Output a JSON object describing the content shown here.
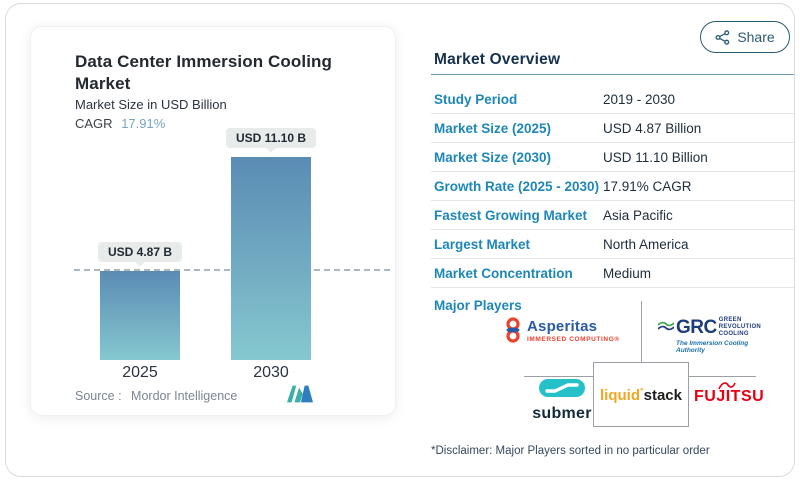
{
  "share": {
    "label": "Share"
  },
  "chart_panel": {
    "title": "Data Center Immersion Cooling Market",
    "subtitle": "Market Size in USD Billion",
    "cagr_label": "CAGR",
    "cagr_value": "17.91%",
    "source_label": "Source :",
    "source_value": "Mordor Intelligence"
  },
  "chart_data": {
    "type": "bar",
    "categories": [
      "2025",
      "2030"
    ],
    "values": [
      4.87,
      11.1
    ],
    "bar_labels": [
      "USD 4.87 B",
      "USD 11.10 B"
    ],
    "title": "Data Center Immersion Cooling Market",
    "ylabel": "Market Size in USD Billion",
    "reference_line": 4.87,
    "legend": "none",
    "grid": "off",
    "bar_color_top": "#5a8cb4",
    "bar_color_bottom": "#85c8cf"
  },
  "overview": {
    "title": "Market Overview",
    "rows": [
      {
        "label": "Study Period",
        "value": "2019 - 2030"
      },
      {
        "label": "Market Size (2025)",
        "value": "USD 4.87 Billion"
      },
      {
        "label": "Market Size (2030)",
        "value": "USD 11.10 Billion"
      },
      {
        "label": "Growth Rate (2025 - 2030)",
        "value": "17.91% CAGR"
      },
      {
        "label": "Fastest Growing Market",
        "value": "Asia Pacific"
      },
      {
        "label": "Largest Market",
        "value": "North America"
      },
      {
        "label": "Market Concentration",
        "value": "Medium"
      }
    ],
    "major_players_label": "Major Players",
    "disclaimer": "*Disclaimer: Major Players sorted in no particular order"
  },
  "logos": {
    "asperitas": {
      "name": "Asperitas",
      "tagline": "IMMERSED COMPUTING®"
    },
    "grc": {
      "name": "GRC",
      "lines": [
        "GREEN",
        "REVOLUTION",
        "COOLING"
      ],
      "tagline": "The Immersion Cooling Authority"
    },
    "submer": {
      "name": "submer"
    },
    "liquidstack": {
      "first": "liquid",
      "deg": "°",
      "second": "stack"
    },
    "fujitsu": {
      "name": "FUJITSU"
    }
  },
  "colors": {
    "accent_teal": "#1e87b7",
    "navy": "#15314e",
    "cagr_value": "#76a3c4",
    "fujitsu_red": "#e60012",
    "submer_teal": "#26c0c8",
    "liquid_orange": "#f0a71f"
  }
}
